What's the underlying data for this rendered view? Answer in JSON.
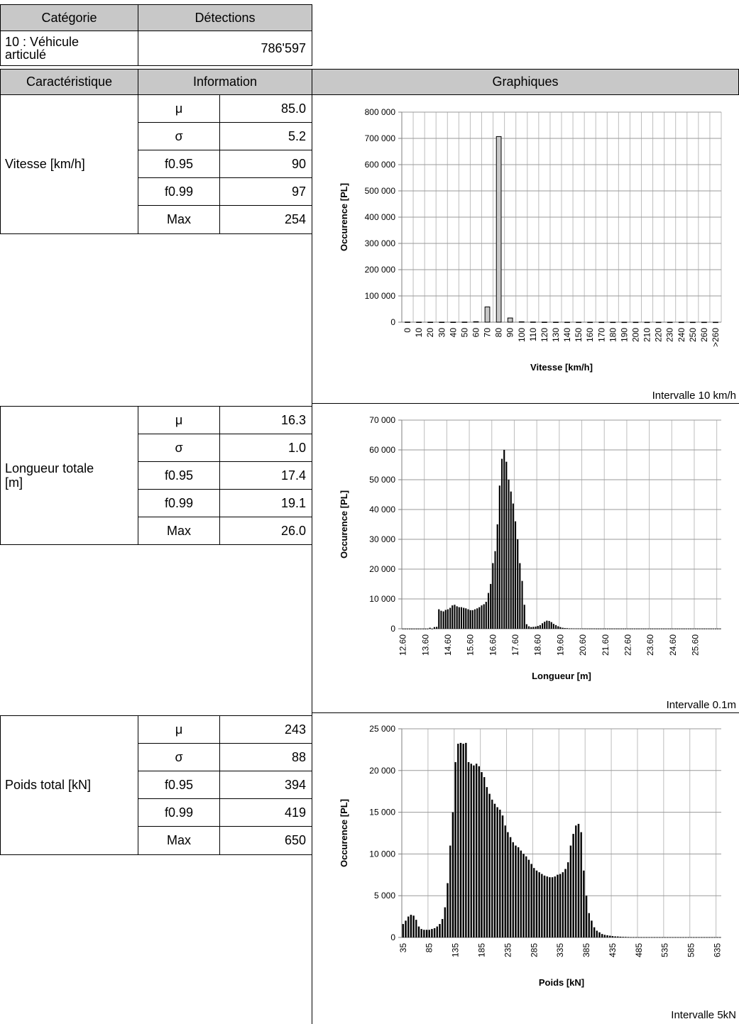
{
  "header": {
    "categorie_label": "Catégorie",
    "detections_label": "Détections",
    "category_line1": "10 : Véhicule",
    "category_line2": "articulé",
    "detections_value": "786'597",
    "caracteristique_label": "Caractéristique",
    "information_label": "Information",
    "graphiques_label": "Graphiques"
  },
  "sections": [
    {
      "label_lines": [
        "Vitesse [km/h]"
      ],
      "stats": [
        {
          "sym": "μ",
          "value": "85.0"
        },
        {
          "sym": "σ",
          "value": "5.2"
        },
        {
          "sym": "f0.95",
          "value": "90"
        },
        {
          "sym": "f0.99",
          "value": "97"
        },
        {
          "sym": "Max",
          "value": "254"
        }
      ],
      "interval_note": "Intervalle 10 km/h"
    },
    {
      "label_lines": [
        "Longueur totale",
        "[m]"
      ],
      "stats": [
        {
          "sym": "μ",
          "value": "16.3"
        },
        {
          "sym": "σ",
          "value": "1.0"
        },
        {
          "sym": "f0.95",
          "value": "17.4"
        },
        {
          "sym": "f0.99",
          "value": "19.1"
        },
        {
          "sym": "Max",
          "value": "26.0"
        }
      ],
      "interval_note": "Intervalle 0.1m"
    },
    {
      "label_lines": [
        "Poids total [kN]"
      ],
      "stats": [
        {
          "sym": "μ",
          "value": "243"
        },
        {
          "sym": "σ",
          "value": "88"
        },
        {
          "sym": "f0.95",
          "value": "394"
        },
        {
          "sym": "f0.99",
          "value": "419"
        },
        {
          "sym": "Max",
          "value": "650"
        }
      ],
      "interval_note": "Intervalle 5kN"
    }
  ],
  "chart_data": [
    {
      "type": "bar",
      "xlabel": "Vitesse [km/h]",
      "ylabel": "Occurence [PL]",
      "ylim": [
        0,
        800000
      ],
      "yticks": [
        0,
        100000,
        200000,
        300000,
        400000,
        500000,
        600000,
        700000,
        800000
      ],
      "ytick_labels": [
        "0",
        "100 000",
        "200 000",
        "300 000",
        "400 000",
        "500 000",
        "600 000",
        "700 000",
        "800 000"
      ],
      "grid": true,
      "bar_fill": "#c8c8c8",
      "categories": [
        "0",
        "10",
        "20",
        "30",
        "40",
        "50",
        "60",
        "70",
        "80",
        "90",
        "100",
        "110",
        "120",
        "130",
        "140",
        "150",
        "160",
        "170",
        "180",
        "190",
        "200",
        "210",
        "220",
        "230",
        "240",
        "250",
        "260",
        ">260"
      ],
      "values": [
        500,
        300,
        200,
        200,
        300,
        500,
        2000,
        58000,
        707000,
        16000,
        1500,
        800,
        300,
        200,
        100,
        100,
        50,
        50,
        50,
        30,
        30,
        20,
        20,
        20,
        10,
        10,
        10,
        10
      ]
    },
    {
      "type": "bar",
      "xlabel": "Longueur [m]",
      "ylabel": "Occurence [PL]",
      "ylim": [
        0,
        70000
      ],
      "yticks": [
        0,
        10000,
        20000,
        30000,
        40000,
        50000,
        60000,
        70000
      ],
      "ytick_labels": [
        "0",
        "10 000",
        "20 000",
        "30 000",
        "40 000",
        "50 000",
        "60 000",
        "70 000"
      ],
      "grid": true,
      "bar_fill": "#000000",
      "x_start": 12.6,
      "x_step": 0.1,
      "tick_labels": [
        "12.60",
        "13.60",
        "14.60",
        "15.60",
        "16.60",
        "17.60",
        "18.60",
        "19.60",
        "20.60",
        "21.60",
        "22.60",
        "23.60",
        "24.60",
        "25.60"
      ],
      "values": [
        0,
        0,
        0,
        0,
        0,
        0,
        0,
        0,
        0,
        0,
        0,
        0,
        300,
        0,
        500,
        600,
        6500,
        6000,
        5800,
        6300,
        6500,
        7000,
        7800,
        8000,
        7500,
        7200,
        7200,
        7000,
        6800,
        6500,
        6200,
        6200,
        6500,
        6800,
        7200,
        7800,
        8200,
        9000,
        12000,
        15000,
        22000,
        26000,
        35000,
        48000,
        57000,
        60000,
        56000,
        50000,
        46000,
        42000,
        36000,
        30000,
        22000,
        16000,
        8000,
        1500,
        800,
        500,
        600,
        700,
        900,
        1200,
        1800,
        2300,
        2700,
        2600,
        2200,
        1600,
        1200,
        800,
        500,
        300,
        200,
        150,
        100,
        100,
        80,
        70,
        60,
        50,
        40,
        40,
        30,
        30,
        30,
        30,
        20,
        20,
        20,
        20,
        20,
        20,
        20,
        20,
        20,
        20,
        20,
        20,
        20,
        20,
        20,
        20,
        20,
        20,
        20,
        20,
        20,
        20,
        20,
        20,
        20,
        20,
        20,
        20,
        20,
        20,
        20,
        20,
        20,
        20,
        20,
        20,
        20,
        20,
        20,
        20,
        20,
        20,
        20,
        20,
        20,
        20,
        20,
        20,
        20,
        20,
        20,
        20,
        20,
        20,
        20,
        20
      ]
    },
    {
      "type": "bar",
      "xlabel": "Poids [kN]",
      "ylabel": "Occurence [PL]",
      "ylim": [
        0,
        25000
      ],
      "yticks": [
        0,
        5000,
        10000,
        15000,
        20000,
        25000
      ],
      "ytick_labels": [
        "0",
        "5 000",
        "10 000",
        "15 000",
        "20 000",
        "25 000"
      ],
      "grid": true,
      "bar_fill": "#000000",
      "x_start": 35,
      "x_step": 5,
      "tick_labels": [
        "35",
        "85",
        "135",
        "185",
        "235",
        "285",
        "335",
        "385",
        "435",
        "485",
        "535",
        "585",
        "635"
      ],
      "values": [
        1600,
        2000,
        2500,
        2700,
        2600,
        2100,
        1300,
        1000,
        900,
        900,
        900,
        1000,
        1100,
        1300,
        1600,
        2200,
        3600,
        6500,
        11000,
        15000,
        21000,
        23200,
        23300,
        23200,
        23300,
        21000,
        20800,
        20600,
        20800,
        20500,
        19800,
        19200,
        18000,
        17200,
        16500,
        16000,
        15600,
        15300,
        14600,
        13400,
        12600,
        12000,
        11400,
        11000,
        10800,
        10400,
        10000,
        9700,
        9300,
        8800,
        8300,
        8000,
        7800,
        7600,
        7400,
        7300,
        7200,
        7200,
        7300,
        7500,
        7600,
        7800,
        8200,
        9000,
        11000,
        12400,
        13400,
        13600,
        12600,
        8000,
        5000,
        2900,
        2000,
        1200,
        800,
        600,
        400,
        300,
        250,
        200,
        150,
        120,
        100,
        80,
        60,
        50,
        40,
        30,
        30,
        30,
        20,
        20,
        20,
        20,
        20,
        20,
        20,
        20,
        20,
        20,
        20,
        20,
        20,
        20,
        20,
        20,
        20,
        20,
        20,
        20,
        20,
        20,
        20,
        20,
        20,
        20,
        20,
        20,
        20,
        20,
        20,
        20
      ]
    }
  ]
}
